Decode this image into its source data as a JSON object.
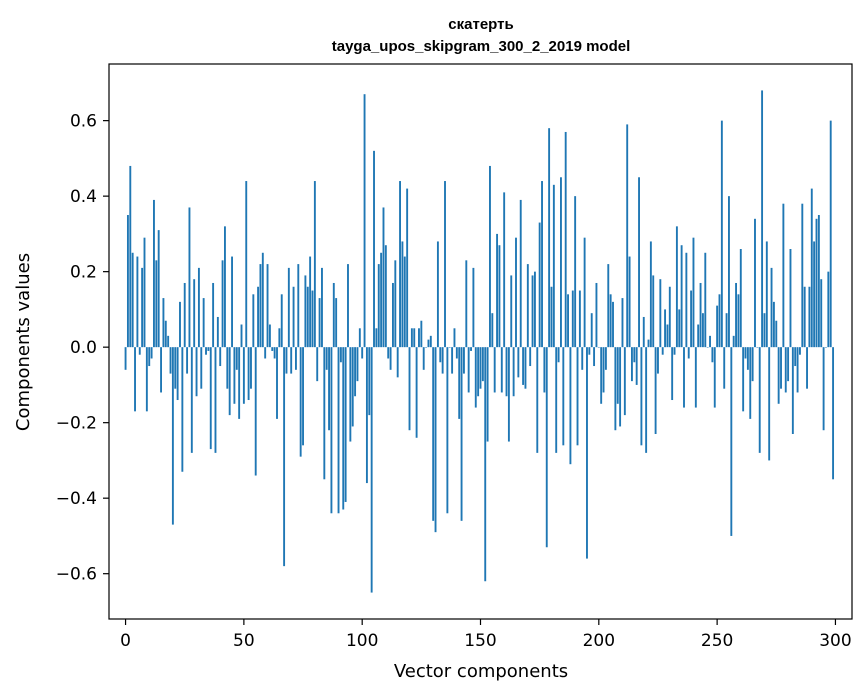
{
  "chart_data": {
    "type": "bar",
    "title_line1": "скатерть",
    "title_line2": "tayga_upos_skipgram_300_2_2019 model",
    "xlabel": "Vector components",
    "ylabel": "Components values",
    "xlim": [
      -7,
      307
    ],
    "ylim": [
      -0.72,
      0.75
    ],
    "xticks": [
      0,
      50,
      100,
      150,
      200,
      250,
      300
    ],
    "yticks": [
      -0.6,
      -0.4,
      -0.2,
      0.0,
      0.2,
      0.4,
      0.6
    ],
    "ytick_labels": [
      "−0.6",
      "−0.4",
      "−0.2",
      "0.0",
      "0.2",
      "0.4",
      "0.6"
    ],
    "xtick_labels": [
      "0",
      "50",
      "100",
      "150",
      "200",
      "250",
      "300"
    ],
    "grid": false,
    "bar_color": "#1f77b4",
    "x": "0..299",
    "values": [
      -0.06,
      0.35,
      0.48,
      0.25,
      -0.17,
      0.24,
      -0.02,
      0.21,
      0.29,
      -0.17,
      -0.05,
      -0.03,
      0.39,
      0.23,
      0.31,
      -0.12,
      0.13,
      0.07,
      0.03,
      -0.07,
      -0.47,
      -0.11,
      -0.14,
      0.12,
      -0.33,
      0.17,
      -0.07,
      0.37,
      -0.28,
      0.18,
      -0.13,
      0.21,
      -0.11,
      0.13,
      -0.02,
      -0.01,
      -0.27,
      0.17,
      -0.28,
      0.08,
      -0.05,
      0.23,
      0.32,
      -0.11,
      -0.18,
      0.24,
      -0.15,
      -0.06,
      -0.19,
      0.06,
      -0.15,
      0.44,
      -0.14,
      -0.11,
      0.14,
      -0.34,
      0.16,
      0.22,
      0.25,
      -0.03,
      0.22,
      0.06,
      -0.01,
      -0.03,
      -0.19,
      0.05,
      0.14,
      -0.58,
      -0.07,
      0.21,
      -0.07,
      0.16,
      -0.06,
      0.22,
      -0.29,
      -0.26,
      0.19,
      0.16,
      0.24,
      0.15,
      0.44,
      -0.09,
      0.13,
      0.21,
      -0.35,
      -0.06,
      -0.22,
      -0.44,
      0.17,
      0.13,
      -0.44,
      -0.04,
      -0.43,
      -0.41,
      0.22,
      -0.25,
      -0.21,
      -0.13,
      -0.09,
      0.05,
      -0.03,
      0.67,
      -0.36,
      -0.18,
      -0.65,
      0.52,
      0.05,
      0.22,
      0.25,
      0.37,
      0.27,
      -0.03,
      -0.06,
      0.17,
      0.23,
      -0.08,
      0.44,
      0.28,
      0.24,
      0.42,
      -0.22,
      0.05,
      0.05,
      -0.24,
      0.05,
      0.07,
      -0.06,
      0.0,
      0.02,
      0.03,
      -0.46,
      -0.49,
      0.28,
      -0.04,
      -0.07,
      0.44,
      -0.44,
      0.0,
      -0.07,
      0.05,
      -0.03,
      -0.19,
      -0.46,
      -0.07,
      0.23,
      -0.12,
      -0.01,
      0.21,
      -0.16,
      -0.13,
      -0.11,
      -0.09,
      -0.62,
      -0.25,
      0.48,
      0.09,
      -0.12,
      0.3,
      0.27,
      -0.12,
      0.41,
      -0.13,
      -0.25,
      0.19,
      -0.13,
      0.29,
      -0.08,
      0.39,
      -0.1,
      -0.11,
      0.22,
      -0.05,
      0.19,
      0.2,
      -0.28,
      0.33,
      0.44,
      -0.12,
      -0.53,
      0.58,
      0.16,
      0.43,
      -0.28,
      -0.04,
      0.45,
      -0.26,
      0.57,
      0.14,
      -0.31,
      0.15,
      0.4,
      -0.26,
      0.15,
      -0.06,
      0.29,
      -0.56,
      -0.02,
      0.09,
      -0.05,
      0.17,
      0.0,
      -0.15,
      -0.12,
      -0.06,
      0.22,
      0.14,
      0.12,
      -0.22,
      -0.15,
      -0.21,
      0.13,
      -0.18,
      0.59,
      0.24,
      -0.09,
      -0.04,
      -0.1,
      0.45,
      -0.26,
      0.08,
      -0.28,
      0.02,
      0.28,
      0.19,
      -0.23,
      -0.07,
      0.18,
      -0.02,
      0.1,
      0.06,
      0.16,
      -0.14,
      -0.02,
      0.32,
      0.1,
      0.27,
      -0.16,
      0.25,
      -0.03,
      0.15,
      0.29,
      -0.16,
      0.06,
      0.17,
      0.09,
      0.25,
      0.0,
      0.03,
      -0.04,
      -0.16,
      0.11,
      0.14,
      0.6,
      -0.11,
      0.09,
      0.4,
      -0.5,
      0.03,
      0.17,
      0.14,
      0.26,
      -0.17,
      -0.03,
      -0.06,
      -0.19,
      -0.09,
      0.34,
      0.0,
      -0.28,
      0.68,
      0.09,
      0.28,
      -0.3,
      0.21,
      0.12,
      0.07,
      -0.15,
      -0.11,
      0.38,
      -0.12,
      -0.09,
      0.26,
      -0.23,
      -0.05,
      -0.12,
      -0.02,
      0.38,
      0.16,
      -0.11,
      0.16,
      0.42,
      0.28,
      0.34,
      0.35,
      0.18,
      -0.22,
      0.0,
      0.2,
      0.6,
      -0.35
    ]
  }
}
